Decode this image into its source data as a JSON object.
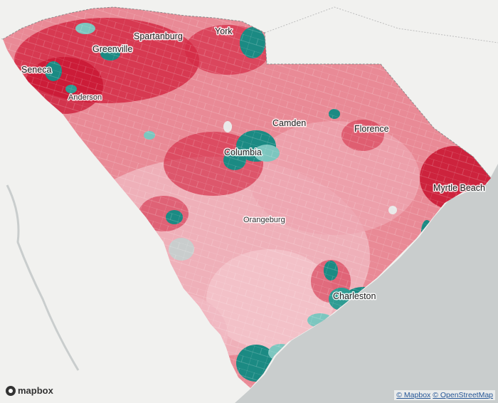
{
  "map": {
    "cities": [
      {
        "name": "Spartanburg"
      },
      {
        "name": "York"
      },
      {
        "name": "Greenville"
      },
      {
        "name": "Seneca"
      },
      {
        "name": "Anderson"
      },
      {
        "name": "Camden"
      },
      {
        "name": "Florence"
      },
      {
        "name": "Columbia"
      },
      {
        "name": "Myrtle Beach"
      },
      {
        "name": "Orangeburg"
      },
      {
        "name": "Charleston"
      }
    ],
    "colors": {
      "water": "#c9cdcd",
      "land_background": "#f1f1ef",
      "republican_dark": "#c8102e",
      "republican_mid": "#e0566a",
      "republican_light": "#f0b6bf",
      "democrat_dark": "#1b8a83",
      "democrat_light": "#7cc6bf",
      "state_border": "#8a8a8a"
    }
  },
  "branding": {
    "logo_text": "mapbox"
  },
  "attribution": {
    "mapbox": "© Mapbox",
    "osm": "© OpenStreetMap"
  }
}
